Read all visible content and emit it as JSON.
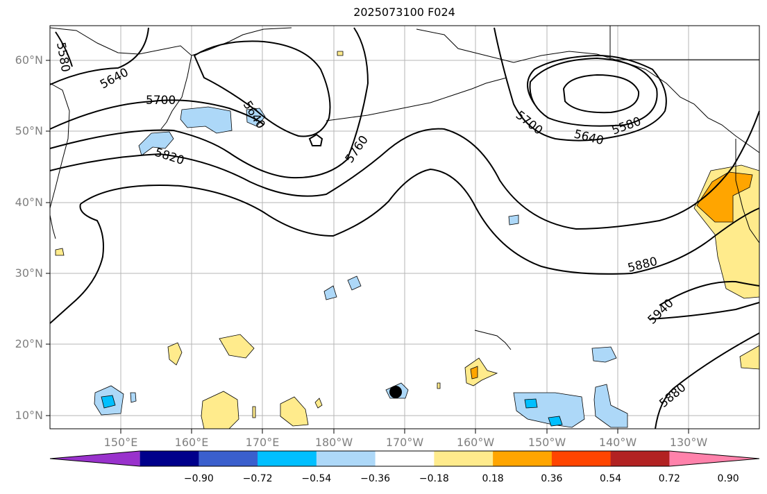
{
  "title": "2025073100 F024",
  "lat_labels": [
    "60°N",
    "50°N",
    "40°N",
    "30°N",
    "20°N",
    "10°N"
  ],
  "lon_labels": [
    "150°E",
    "160°E",
    "170°E",
    "180°W",
    "170°W",
    "160°W",
    "150°W",
    "140°W",
    "130°W"
  ],
  "contour_labels": [
    "5580",
    "5640",
    "5700",
    "5640",
    "5820",
    "5760",
    "5700",
    "5640",
    "5580",
    "5880",
    "5940",
    "5880"
  ],
  "colorbar": {
    "ticks": [
      "−0.90",
      "−0.72",
      "−0.54",
      "−0.36",
      "−0.18",
      "0.18",
      "0.36",
      "0.54",
      "0.72",
      "0.90"
    ],
    "colors": [
      "#9932cc",
      "#00008b",
      "#3a5fcd",
      "#00bfff",
      "#add8f8",
      "#ffffff",
      "#ffeb8c",
      "#ffa500",
      "#ff4500",
      "#b22222",
      "#ff82ab"
    ]
  }
}
